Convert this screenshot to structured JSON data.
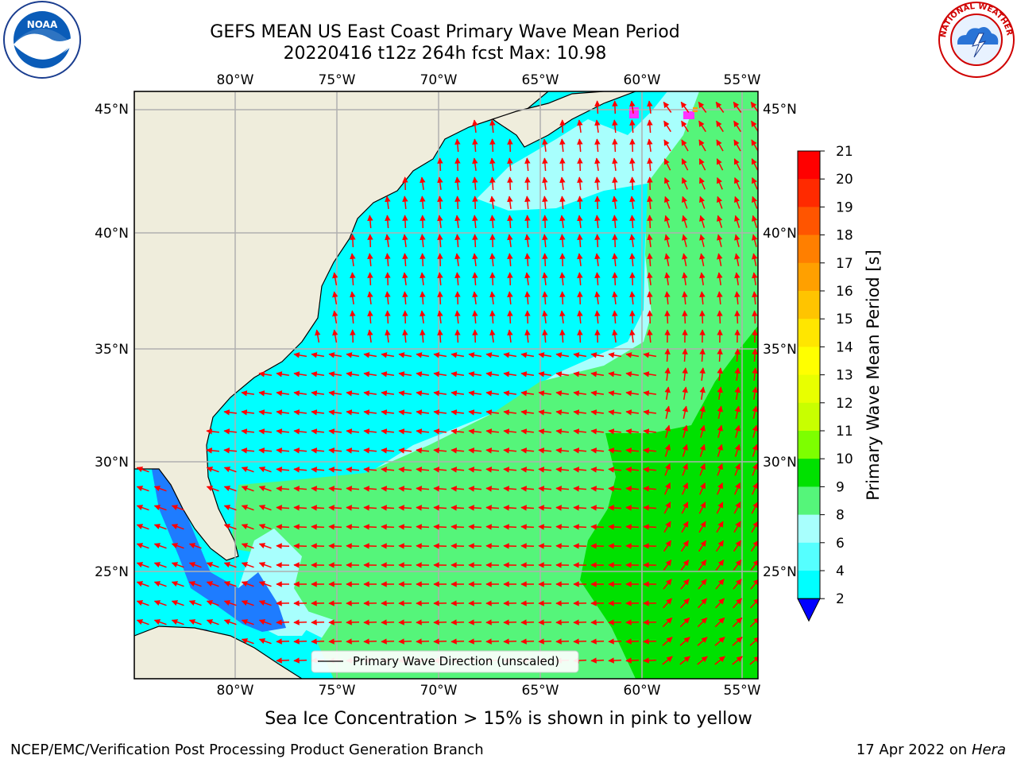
{
  "title": {
    "line1": "GEFS MEAN US East Coast Primary Wave Mean Period",
    "line2": "20220416 t12z 264h fcst   Max: 10.98"
  },
  "logos": {
    "left": "NOAA",
    "right": "NATIONAL WEATHER SERVICE"
  },
  "map": {
    "lon_ticks_top": [
      "80°W",
      "75°W",
      "70°W",
      "65°W",
      "60°W",
      "55°W"
    ],
    "lon_ticks_bottom": [
      "80°W",
      "75°W",
      "70°W",
      "65°W",
      "60°W",
      "55°W"
    ],
    "lat_ticks_left": [
      "45°N",
      "40°N",
      "35°N",
      "30°N",
      "25°N"
    ],
    "lat_ticks_right": [
      "45°N",
      "40°N",
      "35°N",
      "30°N",
      "25°N"
    ],
    "legend": "Primary Wave Direction (unscaled)",
    "colors": {
      "land": "#efeddc",
      "band_2_4": "#1e7cff",
      "band_4_6": "#00ffff",
      "band_6_8": "#55ffff",
      "band_8_9": "#a8fffd",
      "band_9_10": "#55f57a",
      "band_10_11": "#00e100",
      "arrow": "#ff0000"
    }
  },
  "colorbar": {
    "label": "Primary Wave Mean Period [s]",
    "ticks": [
      "21",
      "20",
      "19",
      "18",
      "17",
      "16",
      "15",
      "14",
      "13",
      "12",
      "11",
      "10",
      "9",
      "8",
      "6",
      "4",
      "2"
    ],
    "colors": [
      "#ff0000",
      "#ff2a00",
      "#ff5500",
      "#ff7f00",
      "#ffa000",
      "#ffc400",
      "#ffe600",
      "#ffff00",
      "#e8ff00",
      "#c8ff00",
      "#7dff00",
      "#00e100",
      "#55f57a",
      "#a8fffd",
      "#55ffff",
      "#00ffff",
      "#1e7cff",
      "#0000ff"
    ]
  },
  "caption": "Sea Ice Concentration > 15% is shown in pink to yellow",
  "footer": {
    "left": "NCEP/EMC/Verification Post Processing Product Generation Branch",
    "right_date": "17 Apr 2022 on",
    "right_host": "Hera"
  }
}
